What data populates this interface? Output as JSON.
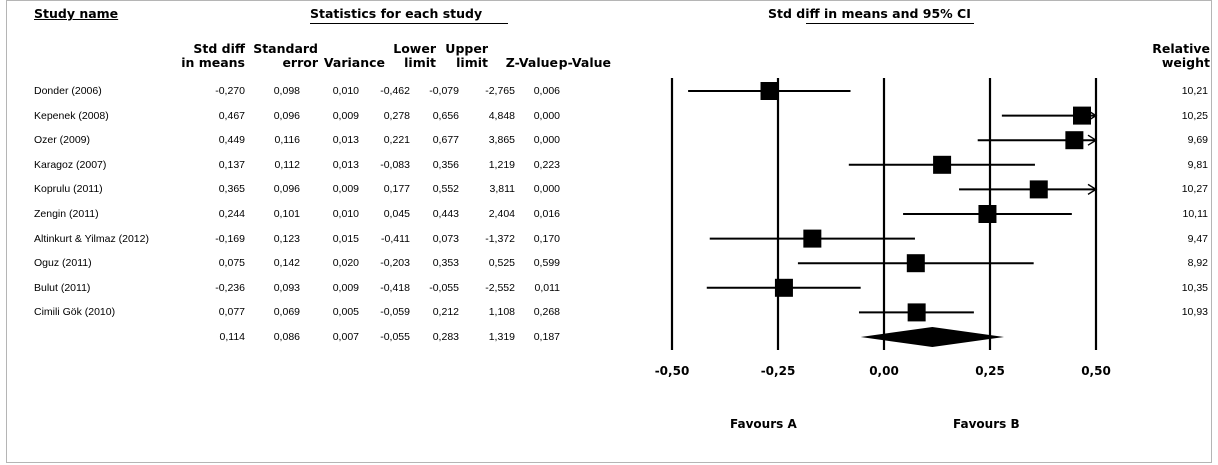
{
  "headers": {
    "study_name": "Study name",
    "statistics": "Statistics for each study",
    "plot_title": "Std diff in means and 95% CI",
    "relative_weight": [
      "Relative",
      "weight"
    ]
  },
  "columns": [
    {
      "key": "d",
      "line1": "Std diff",
      "line2": "in means"
    },
    {
      "key": "se",
      "line1": "Standard",
      "line2": "error"
    },
    {
      "key": "var",
      "line1": "",
      "line2": "Variance"
    },
    {
      "key": "lo",
      "line1": "Lower",
      "line2": "limit"
    },
    {
      "key": "hi",
      "line1": "Upper",
      "line2": "limit"
    },
    {
      "key": "z",
      "line1": "",
      "line2": "Z-Value"
    },
    {
      "key": "p",
      "line1": "",
      "line2": "p-Value"
    }
  ],
  "rows": [
    {
      "name": "Donder (2006)",
      "d": "-0,270",
      "se": "0,098",
      "var": "0,010",
      "lo": "-0,462",
      "hi": "-0,079",
      "z": "-2,765",
      "p": "0,006",
      "w": "10,21"
    },
    {
      "name": "Kepenek (2008)",
      "d": "0,467",
      "se": "0,096",
      "var": "0,009",
      "lo": "0,278",
      "hi": "0,656",
      "z": "4,848",
      "p": "0,000",
      "w": "10,25"
    },
    {
      "name": "Ozer (2009)",
      "d": "0,449",
      "se": "0,116",
      "var": "0,013",
      "lo": "0,221",
      "hi": "0,677",
      "z": "3,865",
      "p": "0,000",
      "w": "9,69"
    },
    {
      "name": "Karagoz (2007)",
      "d": "0,137",
      "se": "0,112",
      "var": "0,013",
      "lo": "-0,083",
      "hi": "0,356",
      "z": "1,219",
      "p": "0,223",
      "w": "9,81"
    },
    {
      "name": "Koprulu (2011)",
      "d": "0,365",
      "se": "0,096",
      "var": "0,009",
      "lo": "0,177",
      "hi": "0,552",
      "z": "3,811",
      "p": "0,000",
      "w": "10,27"
    },
    {
      "name": "Zengin (2011)",
      "d": "0,244",
      "se": "0,101",
      "var": "0,010",
      "lo": "0,045",
      "hi": "0,443",
      "z": "2,404",
      "p": "0,016",
      "w": "10,11"
    },
    {
      "name": "Altinkurt & Yilmaz (2012)",
      "d": "-0,169",
      "se": "0,123",
      "var": "0,015",
      "lo": "-0,411",
      "hi": "0,073",
      "z": "-1,372",
      "p": "0,170",
      "w": "9,47"
    },
    {
      "name": "Oguz (2011)",
      "d": "0,075",
      "se": "0,142",
      "var": "0,020",
      "lo": "-0,203",
      "hi": "0,353",
      "z": "0,525",
      "p": "0,599",
      "w": "8,92"
    },
    {
      "name": "Bulut (2011)",
      "d": "-0,236",
      "se": "0,093",
      "var": "0,009",
      "lo": "-0,418",
      "hi": "-0,055",
      "z": "-2,552",
      "p": "0,011",
      "w": "10,35"
    },
    {
      "name": "Cimili Gök (2010)",
      "d": "0,077",
      "se": "0,069",
      "var": "0,005",
      "lo": "-0,059",
      "hi": "0,212",
      "z": "1,108",
      "p": "0,268",
      "w": "10,93"
    }
  ],
  "summary": {
    "d": "0,114",
    "se": "0,086",
    "var": "0,007",
    "lo": "-0,055",
    "hi": "0,283",
    "z": "1,319",
    "p": "0,187"
  },
  "chart_data": {
    "type": "forest",
    "xlim": [
      -0.5,
      0.5
    ],
    "x_tick_labels": [
      "-0,50",
      "-0,25",
      "0,00",
      "0,25",
      "0,50"
    ],
    "reference_lines": [
      -0.5,
      -0.25,
      0,
      0.25,
      0.5
    ],
    "favours_left": "Favours A",
    "favours_right": "Favours B",
    "studies": [
      {
        "est": -0.27,
        "lo": -0.462,
        "hi": -0.079,
        "weight": 10.21
      },
      {
        "est": 0.467,
        "lo": 0.278,
        "hi": 0.656,
        "weight": 10.25
      },
      {
        "est": 0.449,
        "lo": 0.221,
        "hi": 0.677,
        "weight": 9.69
      },
      {
        "est": 0.137,
        "lo": -0.083,
        "hi": 0.356,
        "weight": 9.81
      },
      {
        "est": 0.365,
        "lo": 0.177,
        "hi": 0.552,
        "weight": 10.27
      },
      {
        "est": 0.244,
        "lo": 0.045,
        "hi": 0.443,
        "weight": 10.11
      },
      {
        "est": -0.169,
        "lo": -0.411,
        "hi": 0.073,
        "weight": 9.47
      },
      {
        "est": 0.075,
        "lo": -0.203,
        "hi": 0.353,
        "weight": 8.92
      },
      {
        "est": -0.236,
        "lo": -0.418,
        "hi": -0.055,
        "weight": 10.35
      },
      {
        "est": 0.077,
        "lo": -0.059,
        "hi": 0.212,
        "weight": 10.93
      }
    ],
    "summary": {
      "est": 0.114,
      "lo": -0.055,
      "hi": 0.283
    }
  }
}
